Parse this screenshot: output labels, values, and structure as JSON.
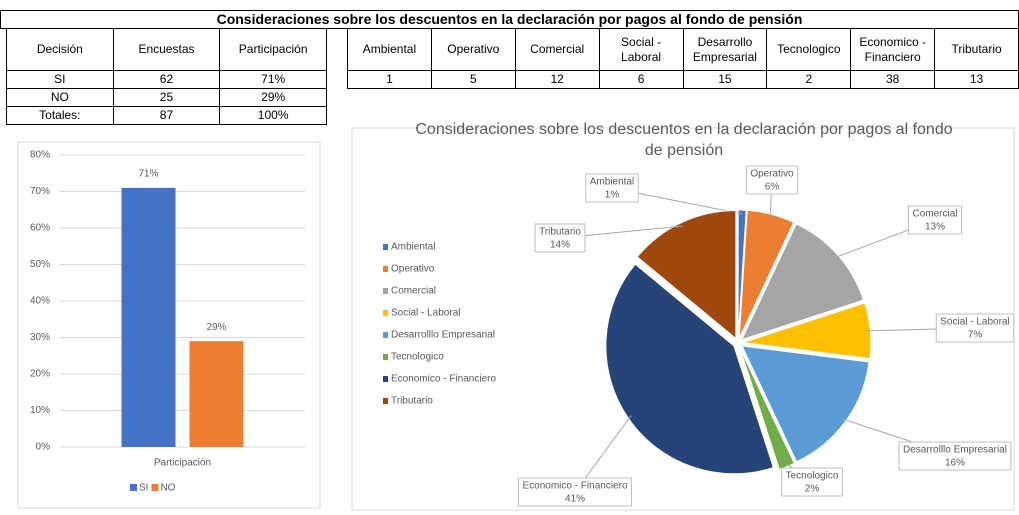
{
  "header_title": "Consideraciones sobre los descuentos en la declaración por pagos al fondo de pensión",
  "table_decision": {
    "columns": [
      "Decisión",
      "Encuestas",
      "Participación"
    ],
    "rows": [
      [
        "SI",
        62,
        "71%"
      ],
      [
        "NO",
        25,
        "29%"
      ],
      [
        "Totales:",
        87,
        "100%"
      ]
    ]
  },
  "table_considerations": {
    "columns": [
      "Ambiental",
      "Operativo",
      "Comercial",
      "Social - Laboral",
      "Desarrollo Empresarial",
      "Tecnologico",
      "Economico - Financiero",
      "Tributario"
    ],
    "values": [
      1,
      5,
      12,
      6,
      15,
      2,
      38,
      13
    ]
  },
  "chart_data": [
    {
      "type": "bar",
      "categories": [
        "Participación"
      ],
      "series": [
        {
          "name": "SI",
          "color": "#4472c4",
          "values": [
            71
          ],
          "value_labels": [
            "71%"
          ]
        },
        {
          "name": "NO",
          "color": "#ed7d31",
          "values": [
            29
          ],
          "value_labels": [
            "29%"
          ]
        }
      ],
      "ylim": [
        0,
        80
      ],
      "yticks": [
        {
          "value": 0,
          "label": "0%"
        },
        {
          "value": 10,
          "label": "10%"
        },
        {
          "value": 20,
          "label": "20%"
        },
        {
          "value": 30,
          "label": "30%"
        },
        {
          "value": 40,
          "label": "40%"
        },
        {
          "value": 50,
          "label": "50%"
        },
        {
          "value": 60,
          "label": "60%"
        },
        {
          "value": 70,
          "label": "70%"
        },
        {
          "value": 80,
          "label": "80%"
        }
      ],
      "grid": true,
      "legend": "bottom"
    },
    {
      "type": "pie",
      "title": "Consideraciones sobre los descuentos en la declaración por pagos al fondo de pensión",
      "categories": [
        "Ambiental",
        "Operativo",
        "Comercial",
        "Social - Laboral",
        "Desarrolllo Empresarial",
        "Tecnologico",
        "Economico - Financiero",
        "Tributario"
      ],
      "values": [
        1,
        6,
        13,
        7,
        16,
        2,
        41,
        14
      ],
      "value_labels": [
        "1%",
        "6%",
        "13%",
        "7%",
        "16%",
        "2%",
        "41%",
        "14%"
      ],
      "colors": [
        "#4472c4",
        "#ed7d31",
        "#a5a5a5",
        "#ffc000",
        "#5b9bd5",
        "#70ad47",
        "#264478",
        "#9e480e"
      ],
      "legend": "left"
    }
  ]
}
